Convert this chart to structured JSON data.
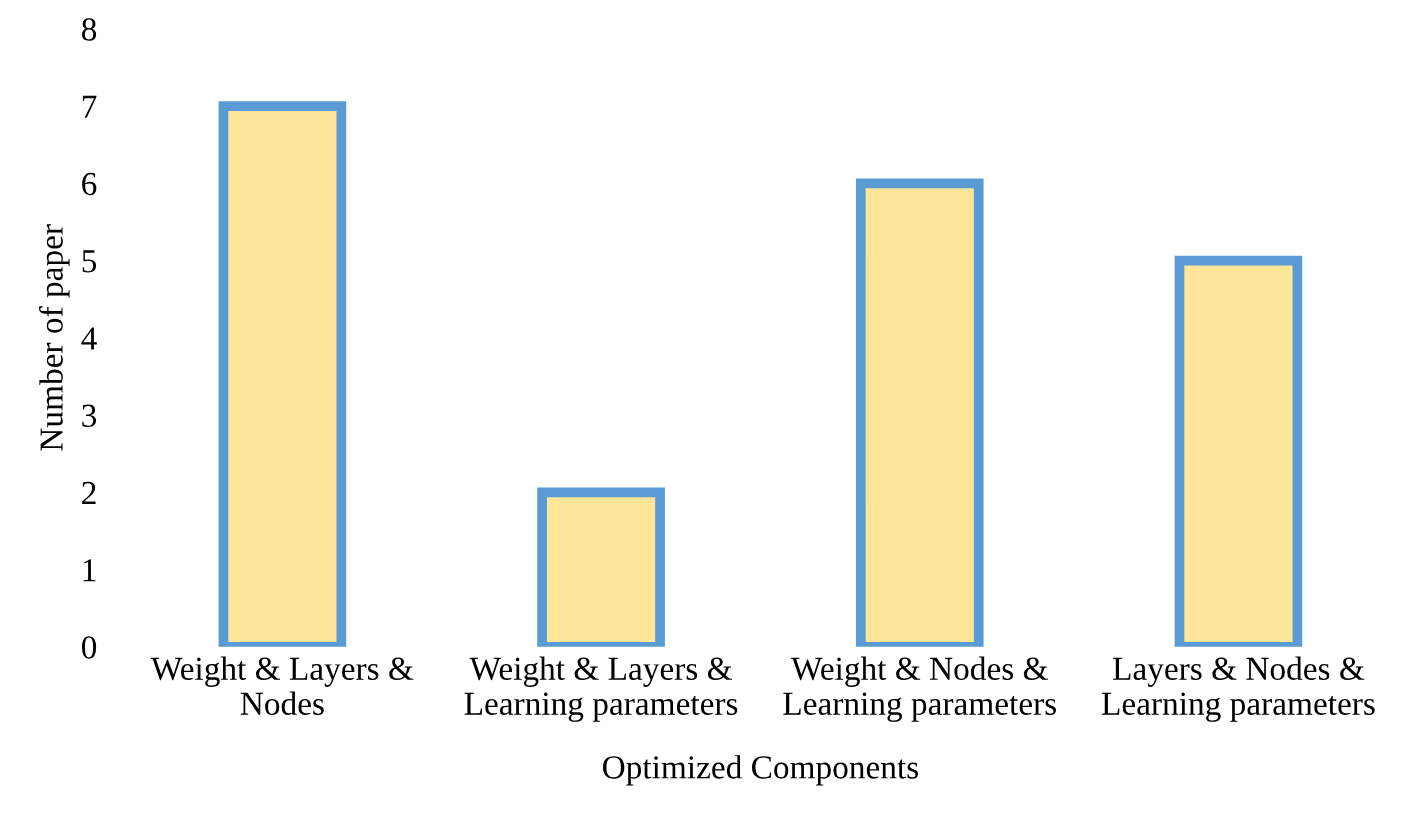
{
  "chart_data": {
    "type": "bar",
    "xlabel": "Optimized Components",
    "ylabel": "Number of paper",
    "categories": [
      "Weight & Layers &\nNodes",
      "Weight & Layers &\nLearning parameters",
      "Weight & Nodes &\nLearning parameters",
      "Layers & Nodes &\nLearning parameters"
    ],
    "values": [
      7,
      2,
      6,
      5
    ],
    "color": "#ffe699",
    "ylim": [
      0,
      8
    ],
    "yticks": [
      0,
      1,
      2,
      3,
      4,
      5,
      6,
      7,
      8
    ],
    "grid": false
  }
}
